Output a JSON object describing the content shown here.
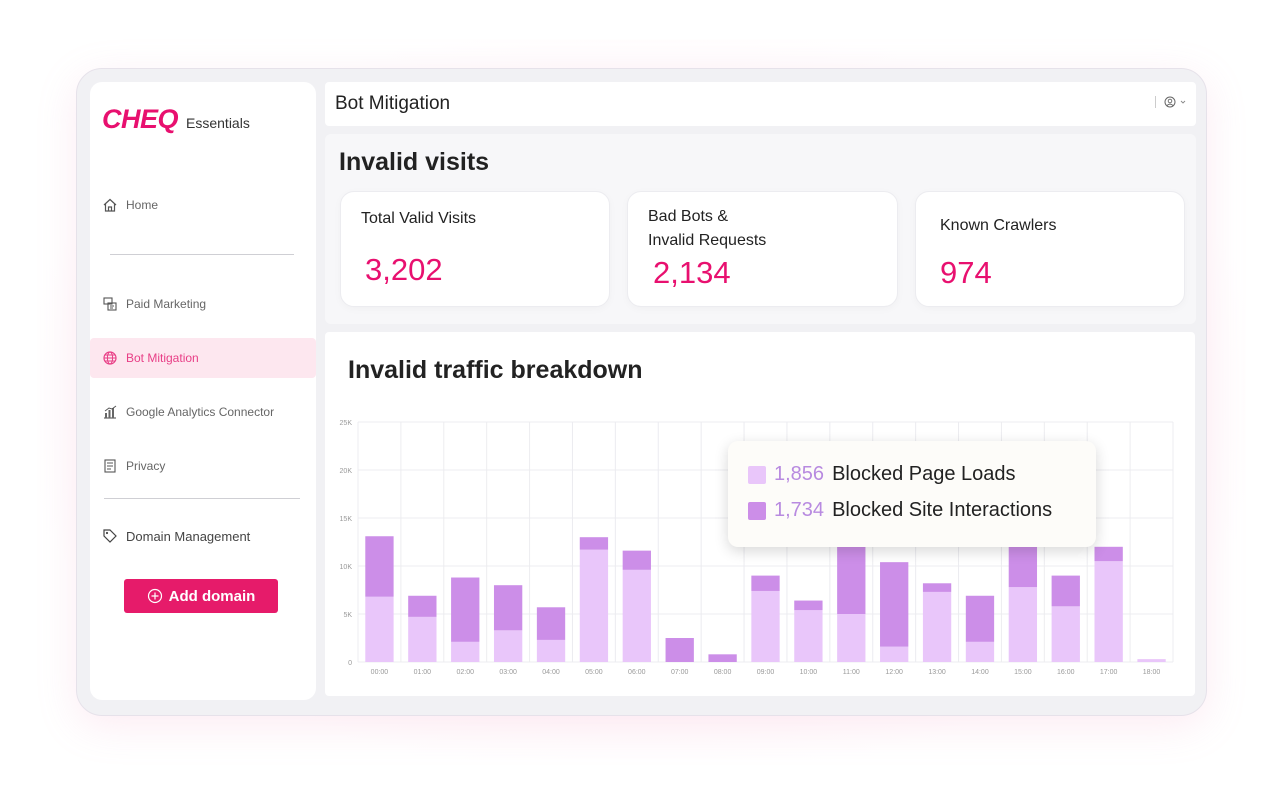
{
  "brand": {
    "logo": "CHEQ",
    "product": "Essentials"
  },
  "sidebar": {
    "items": [
      {
        "label": "Home",
        "icon": "home-icon"
      },
      {
        "label": "Paid Marketing",
        "icon": "paid-marketing-icon"
      },
      {
        "label": "Bot Mitigation",
        "icon": "globe-icon",
        "active": true
      },
      {
        "label": "Google Analytics Connector",
        "icon": "analytics-icon"
      },
      {
        "label": "Privacy",
        "icon": "privacy-icon"
      },
      {
        "label": "Domain Management",
        "icon": "tag-icon"
      }
    ],
    "add_domain": "Add domain"
  },
  "topbar": {
    "title": "Bot Mitigation"
  },
  "invalid_visits": {
    "title": "Invalid visits",
    "cards": [
      {
        "label": "Total Valid Visits",
        "value": "3,202"
      },
      {
        "label": "Bad Bots &\nInvalid Requests",
        "value": "2,134"
      },
      {
        "label": "Known Crawlers",
        "value": "974"
      }
    ]
  },
  "breakdown": {
    "title": "Invalid traffic breakdown"
  },
  "tooltip": {
    "rows": [
      {
        "value": "1,856",
        "label": "Blocked Page Loads"
      },
      {
        "value": "1,734",
        "label": "Blocked Site Interactions"
      }
    ]
  },
  "colors": {
    "accent": "#e8106f",
    "page_loads": "#e9c6fa",
    "site_interactions": "#cc8ee8",
    "active_bg": "#fde7ef"
  },
  "chart_data": {
    "type": "bar",
    "stacked": true,
    "y_tick_labels": [
      "0",
      "5K",
      "10K",
      "15K",
      "20K",
      "25K"
    ],
    "ylim": [
      0,
      25000
    ],
    "categories": [
      "00:00",
      "01:00",
      "02:00",
      "03:00",
      "04:00",
      "05:00",
      "06:00",
      "07:00",
      "08:00",
      "09:00",
      "10:00",
      "11:00",
      "12:00",
      "13:00",
      "14:00",
      "15:00",
      "16:00",
      "17:00",
      "18:00"
    ],
    "series": [
      {
        "name": "Blocked Page Loads",
        "values": [
          6800,
          4700,
          2100,
          3300,
          2300,
          11700,
          9600,
          0,
          0,
          7400,
          5400,
          5000,
          1600,
          7300,
          2100,
          7800,
          5800,
          10500,
          300
        ]
      },
      {
        "name": "Blocked Site Interactions",
        "values": [
          6300,
          2200,
          6700,
          4700,
          3400,
          1300,
          2000,
          2500,
          800,
          1600,
          1000,
          9500,
          8800,
          900,
          4800,
          9500,
          3200,
          1500,
          0
        ]
      }
    ],
    "grid": true
  }
}
